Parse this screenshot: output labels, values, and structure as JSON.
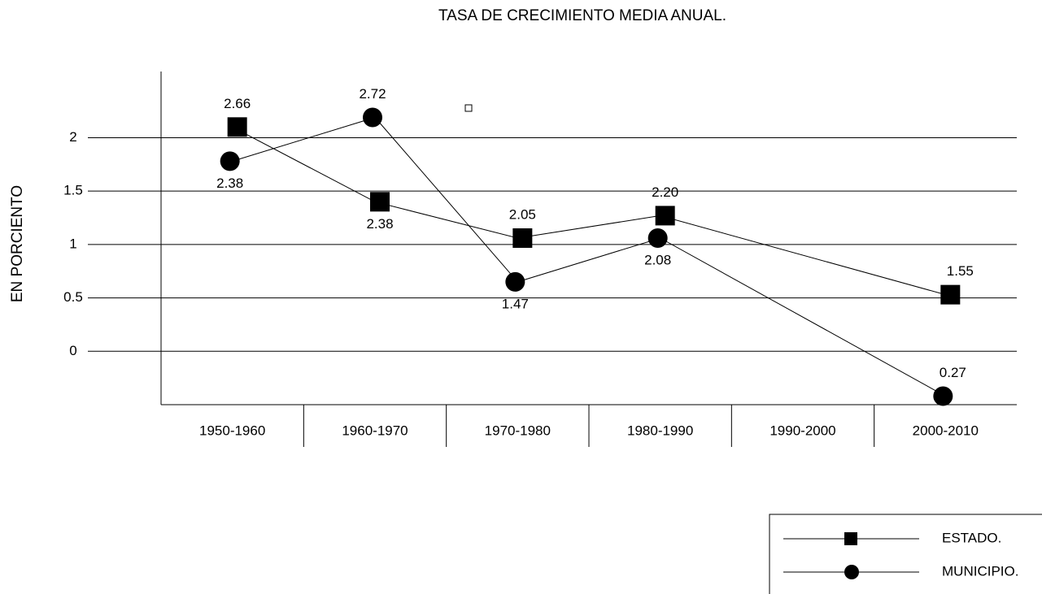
{
  "chart_data": {
    "type": "line",
    "title": "TASA DE CRECIMIENTO MEDIA ANUAL.",
    "y_label": "EN PORCIENTO",
    "categories": [
      "1950-1960",
      "1960-1970",
      "1970-1980",
      "1980-1990",
      "1990-2000",
      "2000-2010"
    ],
    "series": [
      {
        "name": "ESTADO.",
        "color": "#000000",
        "marker": "square",
        "values": [
          2.1,
          1.4,
          1.06,
          1.27,
          null,
          0.53
        ],
        "annotations": [
          "2.66",
          "2.38",
          "2.05",
          "2.20",
          null,
          "1.55"
        ]
      },
      {
        "name": "MUNICIPIO.",
        "color": "#000000",
        "marker": "circle",
        "values": [
          1.78,
          2.19,
          0.65,
          1.06,
          null,
          -0.42
        ],
        "annotations": [
          "2.38",
          "2.72",
          "1.47",
          "2.08",
          null,
          "0.27"
        ]
      }
    ],
    "ylim": [
      -0.5,
      2.62
    ],
    "yticks": [
      0,
      0.5,
      1,
      1.5,
      2
    ],
    "grid": true
  }
}
